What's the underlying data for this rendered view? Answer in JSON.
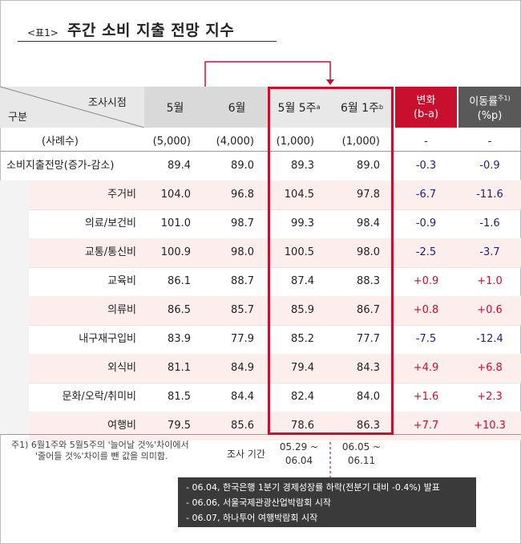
{
  "title": {
    "tag": "<표1>",
    "text": "주간 소비 지출 전망 지수"
  },
  "header": {
    "corner_top": "조사시점",
    "corner_bottom": "구분",
    "cols": [
      "5월",
      "6월",
      "5월 5주",
      "6월 1주"
    ],
    "col_sups": [
      "",
      "",
      "a",
      "b"
    ],
    "change_title": "변화",
    "change_sub": "(b-a)",
    "rate_title": "이동률",
    "rate_sup": "주1)",
    "rate_sub": "(%p)"
  },
  "samples": {
    "label": "(사례수)",
    "values": [
      "(5,000)",
      "(4,000)",
      "(1,000)",
      "(1,000)"
    ],
    "change": "-",
    "rate": "-"
  },
  "rows": [
    {
      "label": "소비지출전망(증가-감소)",
      "values": [
        "89.4",
        "89.0",
        "89.3",
        "89.0"
      ],
      "change": "-0.3",
      "rate": "-0.9"
    },
    {
      "label": "주거비",
      "values": [
        "104.0",
        "96.8",
        "104.5",
        "97.8"
      ],
      "change": "-6.7",
      "rate": "-11.6"
    },
    {
      "label": "의료/보건비",
      "values": [
        "101.0",
        "98.7",
        "99.3",
        "98.4"
      ],
      "change": "-0.9",
      "rate": "-1.6"
    },
    {
      "label": "교통/통신비",
      "values": [
        "100.9",
        "98.0",
        "100.5",
        "98.0"
      ],
      "change": "-2.5",
      "rate": "-3.7"
    },
    {
      "label": "교육비",
      "values": [
        "86.1",
        "88.7",
        "87.4",
        "88.3"
      ],
      "change": "+0.9",
      "rate": "+1.0"
    },
    {
      "label": "의류비",
      "values": [
        "86.5",
        "85.7",
        "85.9",
        "86.7"
      ],
      "change": "+0.8",
      "rate": "+0.6"
    },
    {
      "label": "내구재구입비",
      "values": [
        "83.9",
        "77.9",
        "85.2",
        "77.7"
      ],
      "change": "-7.5",
      "rate": "-12.4"
    },
    {
      "label": "외식비",
      "values": [
        "81.1",
        "84.9",
        "79.4",
        "84.3"
      ],
      "change": "+4.9",
      "rate": "+6.8"
    },
    {
      "label": "문화/오락/취미비",
      "values": [
        "81.5",
        "84.4",
        "82.4",
        "84.0"
      ],
      "change": "+1.6",
      "rate": "+2.3"
    },
    {
      "label": "여행비",
      "values": [
        "79.5",
        "85.6",
        "78.6",
        "86.3"
      ],
      "change": "+7.7",
      "rate": "+10.3"
    }
  ],
  "footnote": {
    "line1": "주1) 6월1주와 5월5주의 '늘어날 것%'차이에서",
    "line2": "'줄어들 것%'차이를 뺀 값을 의미함."
  },
  "period": {
    "label": "조사 기간",
    "a_line1": "05.29 ~",
    "a_line2": "06.04",
    "b_line1": "06.05 ~",
    "b_line2": "06.11"
  },
  "events": [
    "- 06.04, 한국은행 1분기 경제성장률 하락(전분기 대비 -0.4%) 발표",
    "- 06.06, 서울국제관광산업박람회 시작",
    "- 06.07, 하나투어 여행박람회 시작"
  ],
  "colors": {
    "accent_red": "#c8102e",
    "negative": "#1a237e",
    "positive": "#c8102e"
  }
}
